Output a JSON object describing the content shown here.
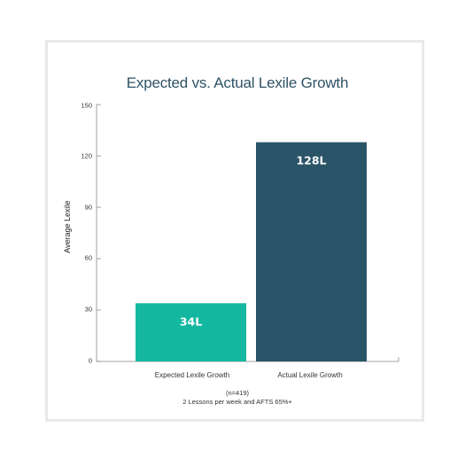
{
  "colors": {
    "expected": "#14b8a0",
    "actual": "#2b5468",
    "title": "#2f5266",
    "axis": "#888888"
  },
  "chart_data": {
    "type": "bar",
    "title": "Expected vs. Actual Lexile Growth",
    "ylabel": "Average Lexile",
    "xlabel": "",
    "ylim": [
      0,
      150
    ],
    "yticks": [
      0,
      30,
      60,
      90,
      120,
      150
    ],
    "grid": false,
    "categories": [
      "Expected Lexile Growth",
      "Actual Lexile Growth"
    ],
    "values": [
      34,
      128
    ],
    "data_labels": [
      "34L",
      "128L"
    ],
    "notes": [
      "(n=419)",
      "2 Lessons per week and AFTS 65%+"
    ]
  }
}
